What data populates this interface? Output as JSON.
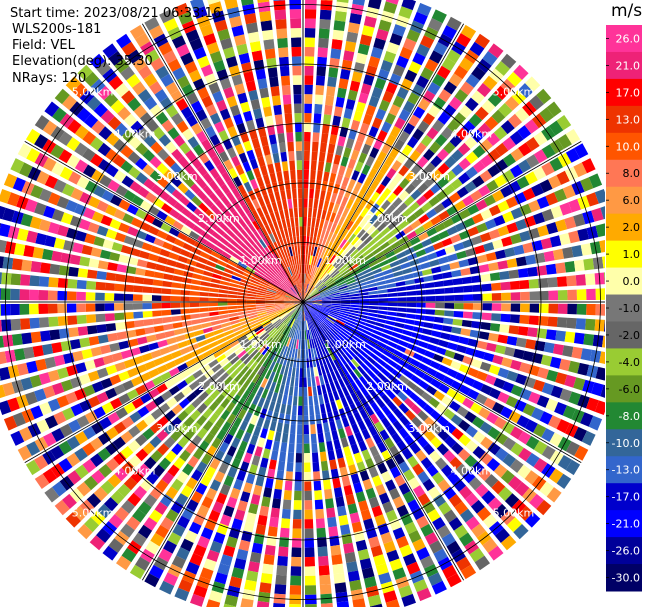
{
  "info": {
    "start_time": "Start time: 2023/08/21 06:33:16",
    "site": "WLS200s-181",
    "field": "Field: VEL",
    "elevation": "Elevation(deg): 35.30",
    "nrays": "NRays: 120"
  },
  "colorbar": {
    "unit": "m/s",
    "ticks": [
      "26.0",
      "21.0",
      "17.0",
      "13.0",
      "10.0",
      "8.0",
      "6.0",
      "2.0",
      "1.0",
      "0.0",
      "-1.0",
      "-2.0",
      "-4.0",
      "-6.0",
      "-8.0",
      "-10.0",
      "-13.0",
      "-17.0",
      "-21.0",
      "-26.0",
      "-30.0"
    ],
    "colors": [
      "#ff3399",
      "#ee2277",
      "#ff0000",
      "#ee3300",
      "#ff5500",
      "#ff7755",
      "#ff9944",
      "#ffaa00",
      "#ffff00",
      "#ffffaa",
      "#777777",
      "#666666",
      "#99cc33",
      "#669922",
      "#228833",
      "#336699",
      "#3366cc",
      "#0000cc",
      "#0000ff",
      "#000099",
      "#000066"
    ]
  },
  "chart_data": {
    "type": "heatmap",
    "projection": "polar PPI",
    "field": "VEL",
    "units": "m/s",
    "nrays": 120,
    "elevation_deg": 35.3,
    "range_rings_km": [
      1.0,
      2.0,
      3.0,
      4.0,
      5.0
    ],
    "ring_labels": [
      "1.00km",
      "2.00km",
      "3.00km",
      "4.00km",
      "5.00km"
    ],
    "max_range_km": 5.4,
    "color_scale": {
      "ticks": [
        26.0,
        21.0,
        17.0,
        13.0,
        10.0,
        8.0,
        6.0,
        2.0,
        1.0,
        0.0,
        -1.0,
        -2.0,
        -4.0,
        -6.0,
        -8.0,
        -10.0,
        -13.0,
        -17.0,
        -21.0,
        -26.0,
        -30.0
      ]
    },
    "near_field_pattern": [
      {
        "azimuth_deg": 300,
        "velocity": 24
      },
      {
        "azimuth_deg": 330,
        "velocity": 22
      },
      {
        "azimuth_deg": 0,
        "velocity": 18
      },
      {
        "azimuth_deg": 30,
        "velocity": 4
      },
      {
        "azimuth_deg": 60,
        "velocity": -6
      },
      {
        "azimuth_deg": 90,
        "velocity": -17
      },
      {
        "azimuth_deg": 120,
        "velocity": -19
      },
      {
        "azimuth_deg": 150,
        "velocity": -16
      },
      {
        "azimuth_deg": 180,
        "velocity": -12
      },
      {
        "azimuth_deg": 210,
        "velocity": -7
      },
      {
        "azimuth_deg": 240,
        "velocity": 2
      },
      {
        "azimuth_deg": 270,
        "velocity": 13
      }
    ]
  }
}
